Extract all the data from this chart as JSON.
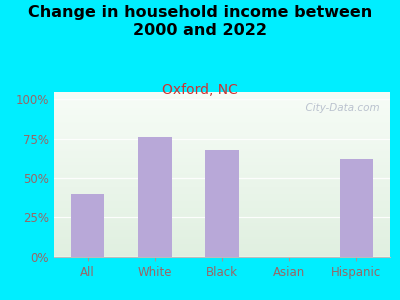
{
  "title": "Change in household income between\n2000 and 2022",
  "subtitle": "Oxford, NC",
  "categories": [
    "All",
    "White",
    "Black",
    "Asian",
    "Hispanic"
  ],
  "values": [
    40,
    76,
    68,
    0,
    62
  ],
  "bar_color": "#b8a8d8",
  "background_outer": "#00eeff",
  "title_fontsize": 11.5,
  "subtitle_fontsize": 10,
  "subtitle_color": "#cc3333",
  "title_color": "#000000",
  "tick_label_color": "#996666",
  "ylabel_ticks": [
    0,
    25,
    50,
    75,
    100
  ],
  "ylabel_labels": [
    "0%",
    "25%",
    "50%",
    "75%",
    "100%"
  ],
  "ylim": [
    0,
    105
  ],
  "watermark": "  City-Data.com"
}
